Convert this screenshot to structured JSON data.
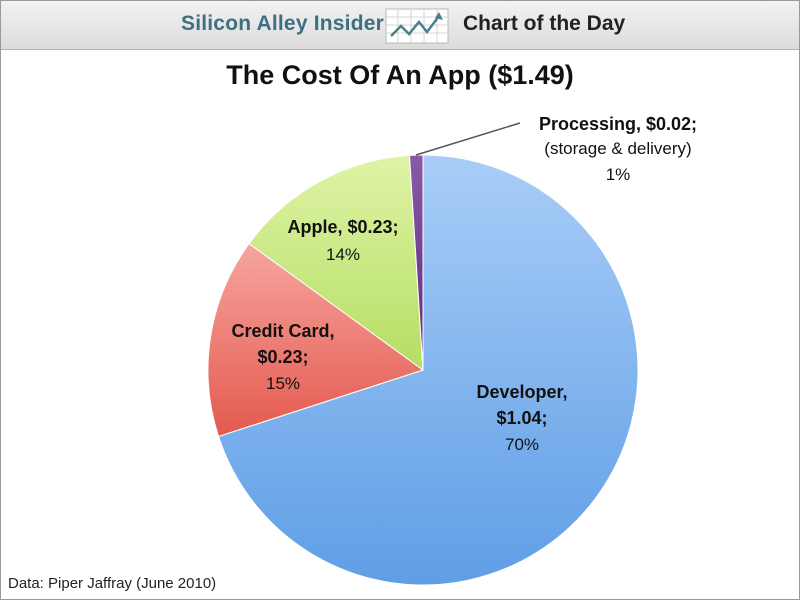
{
  "header": {
    "brand": "Silicon Alley Insider",
    "logo_icon": "trend-chart-icon",
    "section": "Chart of the Day"
  },
  "source_note": "Data: Piper Jaffray (June 2010)",
  "chart_data": {
    "type": "pie",
    "title": "The Cost Of An App ($1.49)",
    "total": 1.49,
    "slices": [
      {
        "label": "Developer,",
        "amount": "$1.04;",
        "percent_label": "70%",
        "value": 70,
        "color": "#7fb3f0"
      },
      {
        "label": "Credit Card,",
        "amount": "$0.23;",
        "percent_label": "15%",
        "value": 15,
        "color": "#ef7f74"
      },
      {
        "label": "Apple, $0.23;",
        "amount": "",
        "percent_label": "14%",
        "value": 14,
        "color": "#c8ea80"
      },
      {
        "label": "Processing, $0.02;",
        "amount": "(storage & delivery)",
        "percent_label": "1%",
        "value": 1,
        "color": "#6b3a87"
      }
    ],
    "start_angle_deg": 0,
    "direction": "clockwise"
  }
}
